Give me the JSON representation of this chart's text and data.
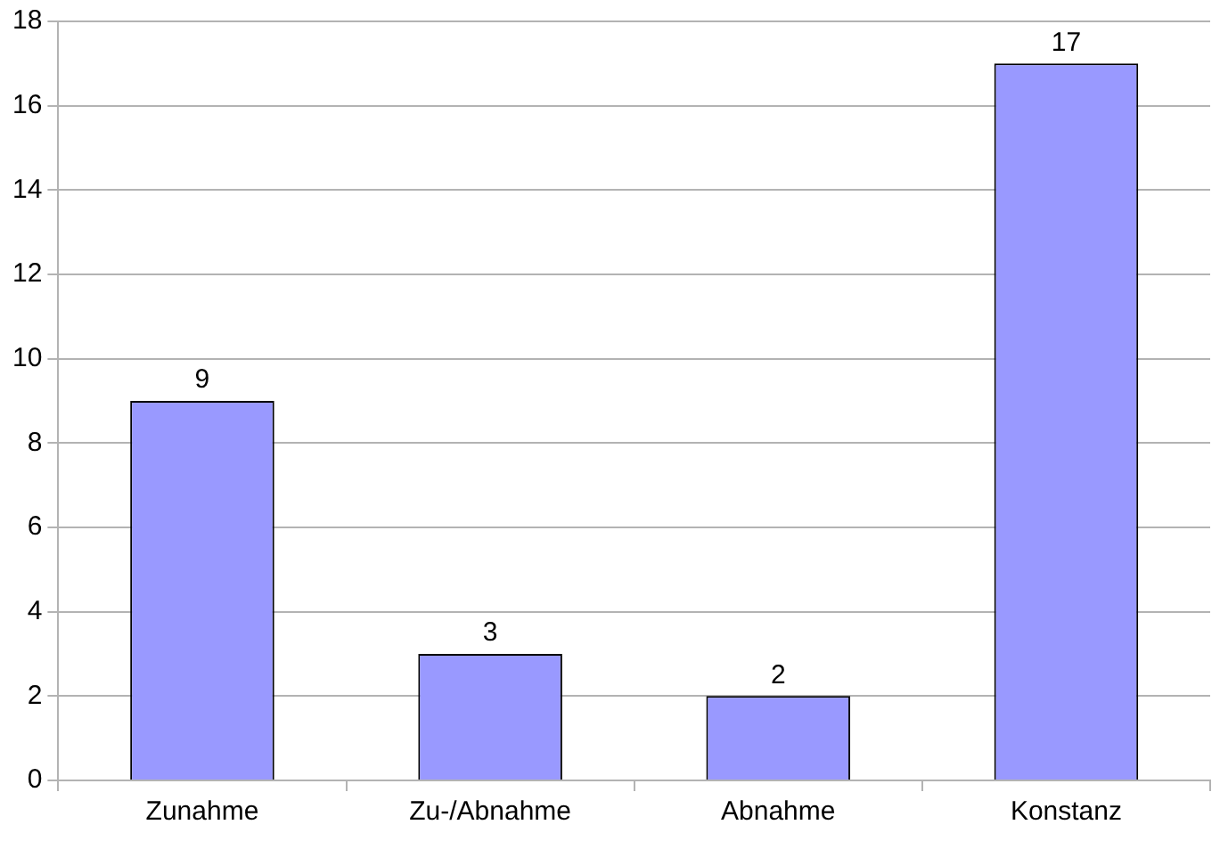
{
  "chart_data": {
    "type": "bar",
    "categories": [
      "Zunahme",
      "Zu-/Abnahme",
      "Abnahme",
      "Konstanz"
    ],
    "values": [
      9,
      3,
      2,
      17
    ],
    "color": "#9999ff",
    "ylim": [
      0,
      18
    ],
    "yticks": [
      0,
      2,
      4,
      6,
      8,
      10,
      12,
      14,
      16,
      18
    ],
    "grid": "y",
    "data_labels": true
  }
}
